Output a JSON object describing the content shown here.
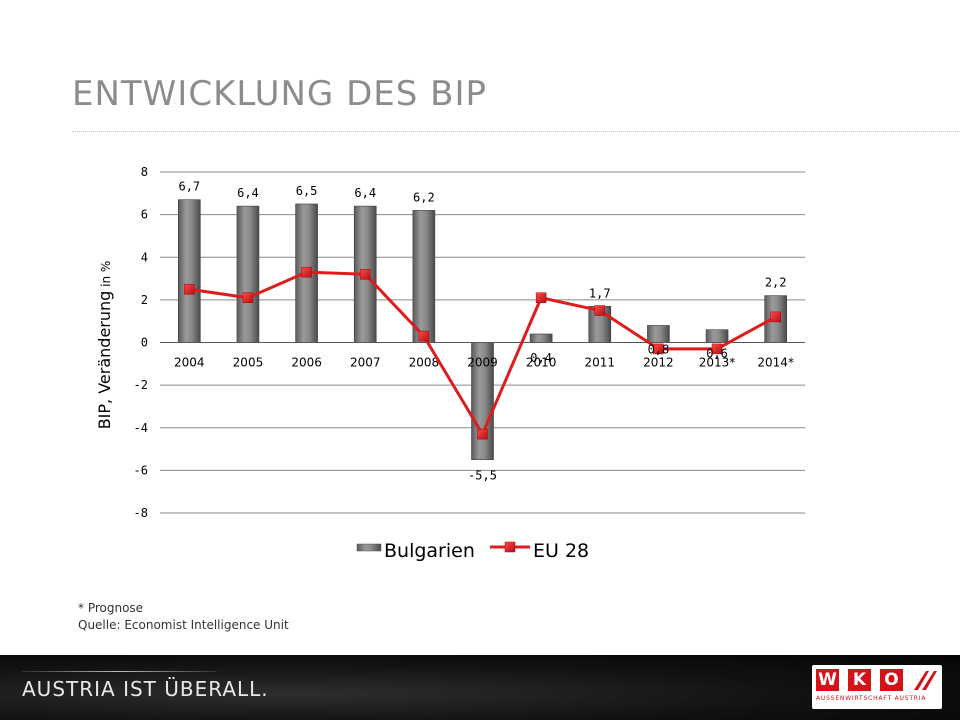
{
  "page": {
    "title": "ENTWICKLUNG DES BIP",
    "footnote_1": "* Prognose",
    "footnote_2": "Quelle: Economist Intelligence Unit"
  },
  "footer": {
    "tagline": "AUSTRIA IST ÜBERALL.",
    "logo_letters": [
      "W",
      "K",
      "O"
    ],
    "logo_subtitle": "AUSSENWIRTSCHAFT AUSTRIA",
    "logo_color": "#d4121a"
  },
  "chart_data": {
    "type": "bar",
    "title": "",
    "xlabel": "",
    "ylabel_main": "BIP, Veränderung",
    "ylabel_unit": " in %",
    "categories": [
      "2004",
      "2005",
      "2006",
      "2007",
      "2008",
      "2009",
      "2010",
      "2011",
      "2012",
      "2013*",
      "2014*"
    ],
    "ylim": [
      -8,
      8
    ],
    "yticks": [
      8,
      6,
      4,
      2,
      0,
      -2,
      -4,
      -6,
      -8
    ],
    "grid": true,
    "legend_position": "bottom",
    "series": [
      {
        "name": "Bulgarien",
        "type": "bar",
        "color": "#808080",
        "values": [
          6.7,
          6.4,
          6.5,
          6.4,
          6.2,
          -5.5,
          0.4,
          1.7,
          0.8,
          0.6,
          2.2
        ],
        "data_labels": [
          "6,7",
          "6,4",
          "6,5",
          "6,4",
          "6,2",
          "-5,5",
          "0,4",
          "1,7",
          "0,8",
          "0,6",
          "2,2"
        ]
      },
      {
        "name": "EU 28",
        "type": "line",
        "color": "#e01b1b",
        "values": [
          2.5,
          2.1,
          3.3,
          3.2,
          0.3,
          -4.3,
          2.1,
          1.5,
          -0.3,
          -0.3,
          1.2
        ]
      }
    ]
  }
}
